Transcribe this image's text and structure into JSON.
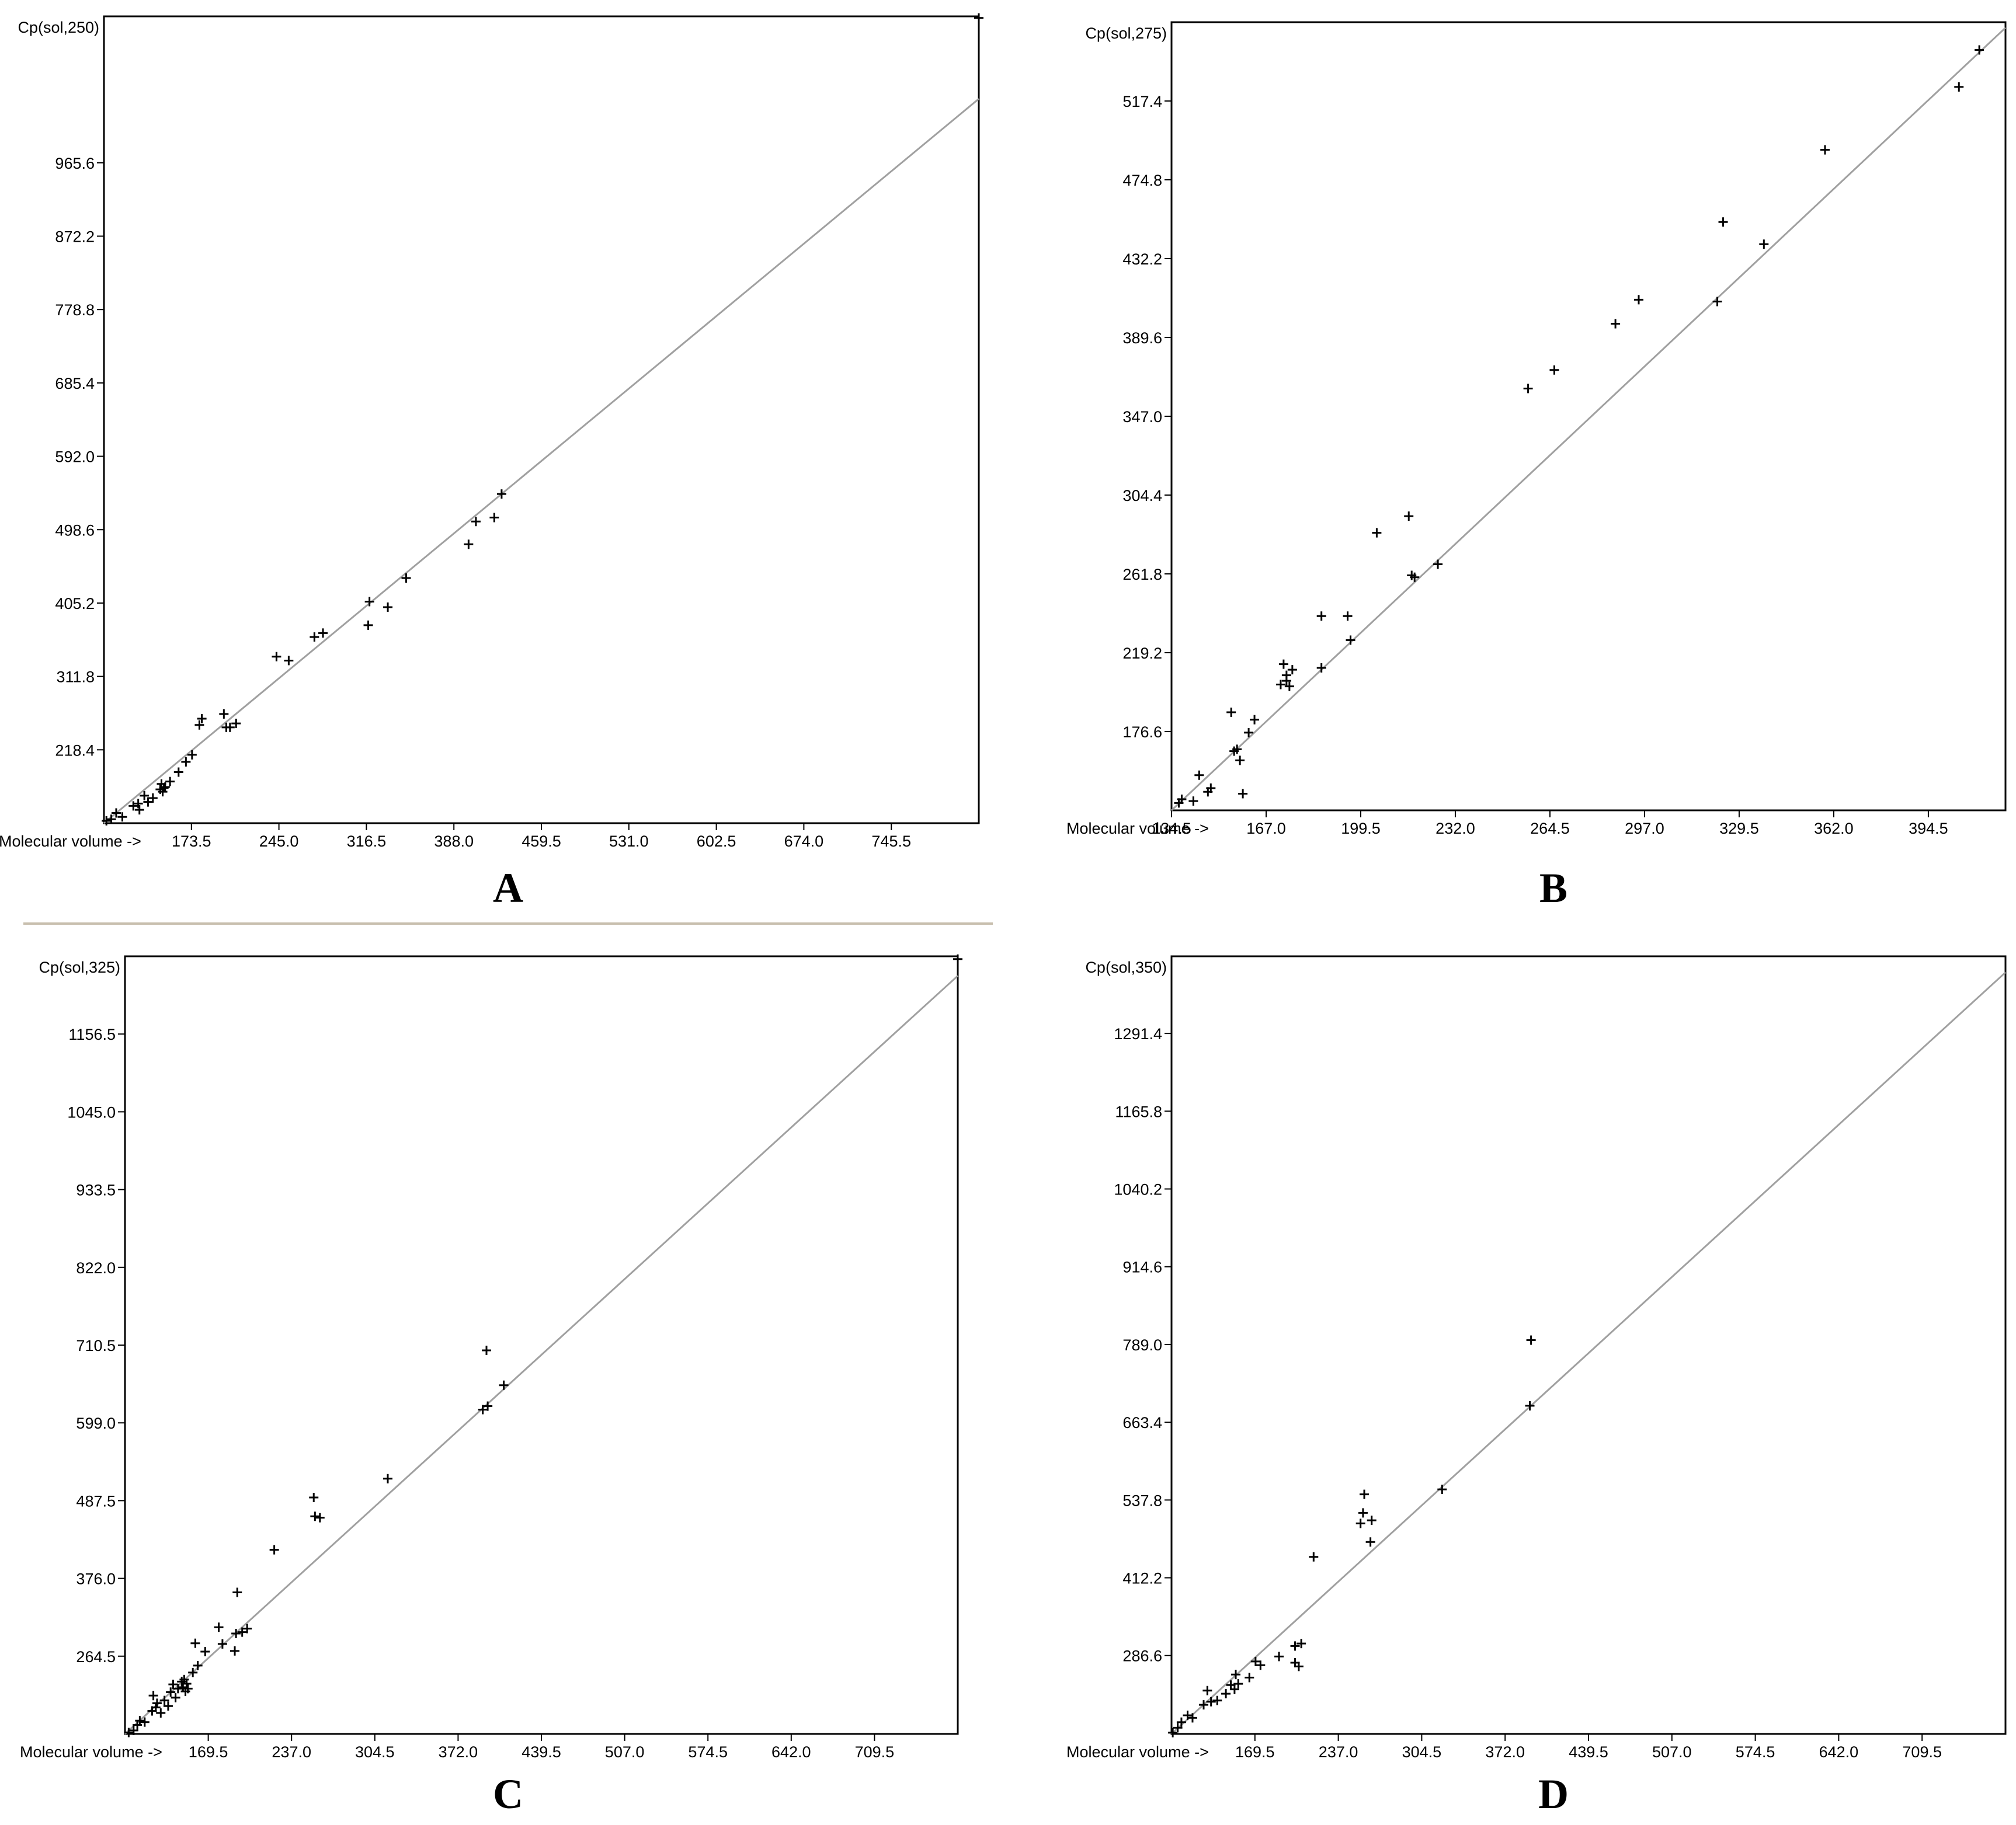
{
  "chart_data": [
    {
      "panel": "A",
      "type": "scatter",
      "ylabel": "Cp(sol,250)",
      "xlabel": "Molecular volume ->",
      "xlim": [
        102,
        817
      ],
      "ylim": [
        125,
        1152
      ],
      "xticks": [
        "173.5",
        "245.0",
        "316.5",
        "388.0",
        "459.5",
        "531.0",
        "602.5",
        "674.0",
        "745.5"
      ],
      "yticks": [
        "218.4",
        "311.8",
        "405.2",
        "498.6",
        "592.0",
        "685.4",
        "778.8",
        "872.2",
        "965.6"
      ],
      "fit_line": [
        [
          102,
          125
        ],
        [
          817,
          1047
        ]
      ],
      "points": [
        [
          104,
          128
        ],
        [
          108,
          130
        ],
        [
          112,
          138
        ],
        [
          117,
          133
        ],
        [
          126,
          147
        ],
        [
          130,
          150
        ],
        [
          131,
          142
        ],
        [
          135,
          160
        ],
        [
          138,
          152
        ],
        [
          142,
          157
        ],
        [
          148,
          168
        ],
        [
          149,
          175
        ],
        [
          150,
          165
        ],
        [
          151,
          170
        ],
        [
          152,
          171
        ],
        [
          156,
          178
        ],
        [
          163,
          190
        ],
        [
          169,
          203
        ],
        [
          174,
          212
        ],
        [
          180,
          250
        ],
        [
          182,
          258
        ],
        [
          200,
          264
        ],
        [
          202,
          247
        ],
        [
          205,
          247
        ],
        [
          210,
          252
        ],
        [
          243,
          337
        ],
        [
          253,
          332
        ],
        [
          274,
          362
        ],
        [
          281,
          367
        ],
        [
          318,
          377
        ],
        [
          319,
          407
        ],
        [
          334,
          400
        ],
        [
          349,
          437
        ],
        [
          400,
          480
        ],
        [
          406,
          509
        ],
        [
          421,
          514
        ],
        [
          427,
          544
        ],
        [
          817,
          1150
        ]
      ]
    },
    {
      "panel": "B",
      "type": "scatter",
      "ylabel": "Cp(sol,275)",
      "xlabel": "Molecular volume ->",
      "xlim": [
        134.5,
        421
      ],
      "ylim": [
        134,
        560
      ],
      "xticks": [
        "134.5",
        "167.0",
        "199.5",
        "232.0",
        "264.5",
        "297.0",
        "329.5",
        "362.0",
        "394.5"
      ],
      "yticks": [
        "176.6",
        "219.2",
        "261.8",
        "304.4",
        "347.0",
        "389.6",
        "432.2",
        "474.8",
        "517.4"
      ],
      "fit_line": [
        [
          134.5,
          134
        ],
        [
          421,
          557
        ]
      ],
      "points": [
        [
          137,
          138
        ],
        [
          138,
          140
        ],
        [
          142,
          139
        ],
        [
          144,
          153
        ],
        [
          147,
          144
        ],
        [
          148,
          146
        ],
        [
          155,
          187
        ],
        [
          156,
          166
        ],
        [
          157,
          167
        ],
        [
          158,
          161
        ],
        [
          159,
          143
        ],
        [
          161,
          176
        ],
        [
          163,
          183
        ],
        [
          172,
          202
        ],
        [
          173,
          213
        ],
        [
          174,
          204
        ],
        [
          174,
          207
        ],
        [
          175,
          201
        ],
        [
          176,
          210
        ],
        [
          186,
          211
        ],
        [
          186,
          239
        ],
        [
          195,
          239
        ],
        [
          196,
          226
        ],
        [
          205,
          284
        ],
        [
          216,
          293
        ],
        [
          217,
          261
        ],
        [
          218,
          260
        ],
        [
          226,
          267
        ],
        [
          257,
          362
        ],
        [
          266,
          372
        ],
        [
          287,
          397
        ],
        [
          295,
          410
        ],
        [
          322,
          409
        ],
        [
          324,
          452
        ],
        [
          338,
          440
        ],
        [
          359,
          491
        ],
        [
          405,
          525
        ],
        [
          412,
          545
        ]
      ]
    },
    {
      "panel": "C",
      "type": "scatter",
      "ylabel": "Cp(sol,325)",
      "xlabel": "Molecular volume ->",
      "xlim": [
        102,
        777
      ],
      "ylim": [
        153,
        1268
      ],
      "xticks": [
        "169.5",
        "237.0",
        "304.5",
        "372.0",
        "439.5",
        "507.0",
        "574.5",
        "642.0",
        "709.5"
      ],
      "yticks": [
        "264.5",
        "376.0",
        "487.5",
        "599.0",
        "710.5",
        "822.0",
        "933.5",
        "1045.0",
        "1156.5"
      ],
      "fit_line": [
        [
          102,
          153
        ],
        [
          777,
          1240
        ]
      ],
      "points": [
        [
          105,
          155
        ],
        [
          109,
          158
        ],
        [
          112,
          166
        ],
        [
          114,
          172
        ],
        [
          118,
          170
        ],
        [
          124,
          186
        ],
        [
          125,
          208
        ],
        [
          127,
          191
        ],
        [
          128,
          197
        ],
        [
          131,
          183
        ],
        [
          134,
          201
        ],
        [
          137,
          193
        ],
        [
          139,
          213
        ],
        [
          141,
          224
        ],
        [
          143,
          205
        ],
        [
          145,
          218
        ],
        [
          148,
          228
        ],
        [
          149,
          220
        ],
        [
          150,
          231
        ],
        [
          151,
          214
        ],
        [
          152,
          225
        ],
        [
          153,
          218
        ],
        [
          157,
          241
        ],
        [
          159,
          283
        ],
        [
          161,
          251
        ],
        [
          167,
          271
        ],
        [
          178,
          306
        ],
        [
          181,
          282
        ],
        [
          191,
          272
        ],
        [
          192,
          297
        ],
        [
          193,
          356
        ],
        [
          197,
          299
        ],
        [
          201,
          304
        ],
        [
          223,
          417
        ],
        [
          255,
          492
        ],
        [
          256,
          465
        ],
        [
          260,
          463
        ],
        [
          315,
          519
        ],
        [
          392,
          618
        ],
        [
          395,
          703
        ],
        [
          396,
          623
        ],
        [
          409,
          653
        ],
        [
          777,
          1264
        ]
      ]
    },
    {
      "panel": "D",
      "type": "scatter",
      "ylabel": "Cp(sol,350)",
      "xlabel": "Molecular volume ->",
      "xlim": [
        102,
        777
      ],
      "ylim": [
        160,
        1416
      ],
      "xticks": [
        "169.5",
        "237.0",
        "304.5",
        "372.0",
        "439.5",
        "507.0",
        "574.5",
        "642.0",
        "709.5"
      ],
      "yticks": [
        "286.6",
        "412.2",
        "537.8",
        "663.4",
        "789.0",
        "914.6",
        "1040.2",
        "1165.8",
        "1291.4"
      ],
      "fit_line": [
        [
          102,
          160
        ],
        [
          777,
          1390
        ]
      ],
      "points": [
        [
          103,
          162
        ],
        [
          107,
          170
        ],
        [
          110,
          179
        ],
        [
          115,
          190
        ],
        [
          119,
          186
        ],
        [
          128,
          207
        ],
        [
          131,
          230
        ],
        [
          134,
          212
        ],
        [
          139,
          214
        ],
        [
          146,
          225
        ],
        [
          150,
          239
        ],
        [
          153,
          232
        ],
        [
          154,
          256
        ],
        [
          156,
          241
        ],
        [
          165,
          251
        ],
        [
          170,
          277
        ],
        [
          174,
          271
        ],
        [
          189,
          285
        ],
        [
          202,
          275
        ],
        [
          202,
          302
        ],
        [
          205,
          269
        ],
        [
          207,
          306
        ],
        [
          217,
          446
        ],
        [
          255,
          500
        ],
        [
          257,
          517
        ],
        [
          258,
          547
        ],
        [
          263,
          470
        ],
        [
          264,
          505
        ],
        [
          321,
          555
        ],
        [
          392,
          690
        ],
        [
          393,
          796
        ]
      ]
    }
  ],
  "panel_labels": [
    "A",
    "B",
    "C",
    "D"
  ]
}
